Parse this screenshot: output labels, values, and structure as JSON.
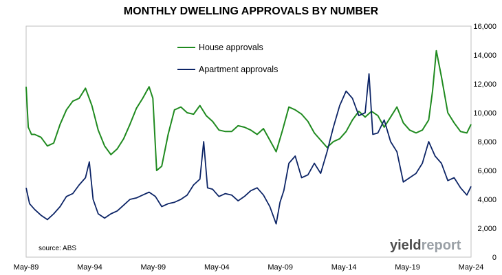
{
  "chart_data": {
    "type": "line",
    "title": "MONTHLY DWELLING APPROVALS BY NUMBER",
    "x_tick_labels": [
      "May-89",
      "May-94",
      "May-99",
      "May-04",
      "May-09",
      "May-14",
      "May-19",
      "May-24"
    ],
    "x_range": [
      "May-89",
      "May-24"
    ],
    "ylim": [
      0,
      16000
    ],
    "y_ticks": [
      0,
      2000,
      4000,
      6000,
      8000,
      10000,
      12000,
      14000,
      16000
    ],
    "y_tick_labels": [
      "0",
      "2,000",
      "4,000",
      "6,000",
      "8,000",
      "10,000",
      "12,000",
      "14,000",
      "16,000"
    ],
    "y_axis_side": "right",
    "grid": false,
    "legend_position": "top-center",
    "x_year_ticks": [
      1989.33,
      1994.33,
      1999.33,
      2004.33,
      2009.33,
      2014.33,
      2019.33,
      2024.33
    ],
    "series": [
      {
        "name": "House approvals",
        "color": "#1f8a1f",
        "x": [
          1989.33,
          1989.5,
          1989.75,
          1990.0,
          1990.5,
          1991.0,
          1991.5,
          1992.0,
          1992.5,
          1993.0,
          1993.5,
          1994.0,
          1994.5,
          1995.0,
          1995.5,
          1996.0,
          1996.5,
          1997.0,
          1997.5,
          1998.0,
          1998.5,
          1999.0,
          1999.3,
          1999.6,
          2000.0,
          2000.5,
          2001.0,
          2001.5,
          2002.0,
          2002.5,
          2003.0,
          2003.5,
          2004.0,
          2004.5,
          2005.0,
          2005.5,
          2006.0,
          2006.5,
          2007.0,
          2007.5,
          2008.0,
          2008.5,
          2009.0,
          2009.5,
          2010.0,
          2010.5,
          2011.0,
          2011.5,
          2012.0,
          2012.5,
          2013.0,
          2013.5,
          2014.0,
          2014.5,
          2015.0,
          2015.5,
          2016.0,
          2016.5,
          2017.0,
          2017.5,
          2018.0,
          2018.5,
          2019.0,
          2019.5,
          2020.0,
          2020.5,
          2021.0,
          2021.3,
          2021.6,
          2022.0,
          2022.5,
          2023.0,
          2023.5,
          2024.0,
          2024.33
        ],
        "values": [
          11800,
          9000,
          8500,
          8500,
          8300,
          7700,
          7900,
          9200,
          10200,
          10800,
          11000,
          11700,
          10500,
          8800,
          7700,
          7100,
          7500,
          8200,
          9200,
          10300,
          11000,
          11800,
          11000,
          6000,
          6300,
          8500,
          10200,
          10400,
          10000,
          9900,
          10500,
          9800,
          9400,
          8800,
          8700,
          8700,
          9100,
          9000,
          8800,
          8500,
          8900,
          8100,
          7300,
          8800,
          10400,
          10200,
          9900,
          9400,
          8600,
          8100,
          7600,
          8000,
          8200,
          8700,
          9500,
          10100,
          9700,
          10100,
          9800,
          9000,
          9700,
          10400,
          9300,
          8800,
          8600,
          8800,
          9500,
          11500,
          14300,
          12500,
          10000,
          9300,
          8700,
          8600,
          9200
        ]
      },
      {
        "name": "Apartment approvals",
        "color": "#0c2466",
        "x": [
          1989.33,
          1989.6,
          1990.0,
          1990.5,
          1991.0,
          1991.5,
          1992.0,
          1992.5,
          1993.0,
          1993.5,
          1994.0,
          1994.3,
          1994.6,
          1995.0,
          1995.5,
          1996.0,
          1996.5,
          1997.0,
          1997.5,
          1998.0,
          1998.5,
          1999.0,
          1999.5,
          2000.0,
          2000.5,
          2001.0,
          2001.5,
          2002.0,
          2002.5,
          2003.0,
          2003.3,
          2003.6,
          2004.0,
          2004.5,
          2005.0,
          2005.5,
          2006.0,
          2006.5,
          2007.0,
          2007.5,
          2008.0,
          2008.5,
          2009.0,
          2009.3,
          2009.6,
          2010.0,
          2010.5,
          2011.0,
          2011.5,
          2012.0,
          2012.5,
          2013.0,
          2013.5,
          2014.0,
          2014.5,
          2015.0,
          2015.5,
          2016.0,
          2016.3,
          2016.6,
          2017.0,
          2017.5,
          2018.0,
          2018.5,
          2019.0,
          2019.5,
          2020.0,
          2020.5,
          2021.0,
          2021.5,
          2022.0,
          2022.5,
          2023.0,
          2023.5,
          2024.0,
          2024.33
        ],
        "values": [
          4800,
          3700,
          3300,
          2900,
          2600,
          3000,
          3500,
          4200,
          4400,
          5000,
          5500,
          6600,
          4000,
          3000,
          2700,
          3000,
          3200,
          3600,
          4000,
          4100,
          4300,
          4500,
          4200,
          3500,
          3700,
          3800,
          4000,
          4300,
          5000,
          5400,
          8000,
          4800,
          4700,
          4200,
          4400,
          4300,
          3900,
          4200,
          4600,
          4800,
          4300,
          3500,
          2300,
          3800,
          4600,
          6500,
          7000,
          5500,
          5700,
          6500,
          5800,
          7300,
          9000,
          10500,
          11500,
          11000,
          9800,
          10000,
          12700,
          8500,
          8600,
          9500,
          8000,
          7300,
          5200,
          5500,
          5800,
          6500,
          8000,
          7000,
          6500,
          5300,
          5500,
          4800,
          4300,
          4900
        ]
      }
    ]
  },
  "source_note": "source: ABS",
  "brand": {
    "part1": "yield",
    "part2": "report",
    "color1": "#4d4d4d",
    "color2": "#9aa0a6"
  }
}
